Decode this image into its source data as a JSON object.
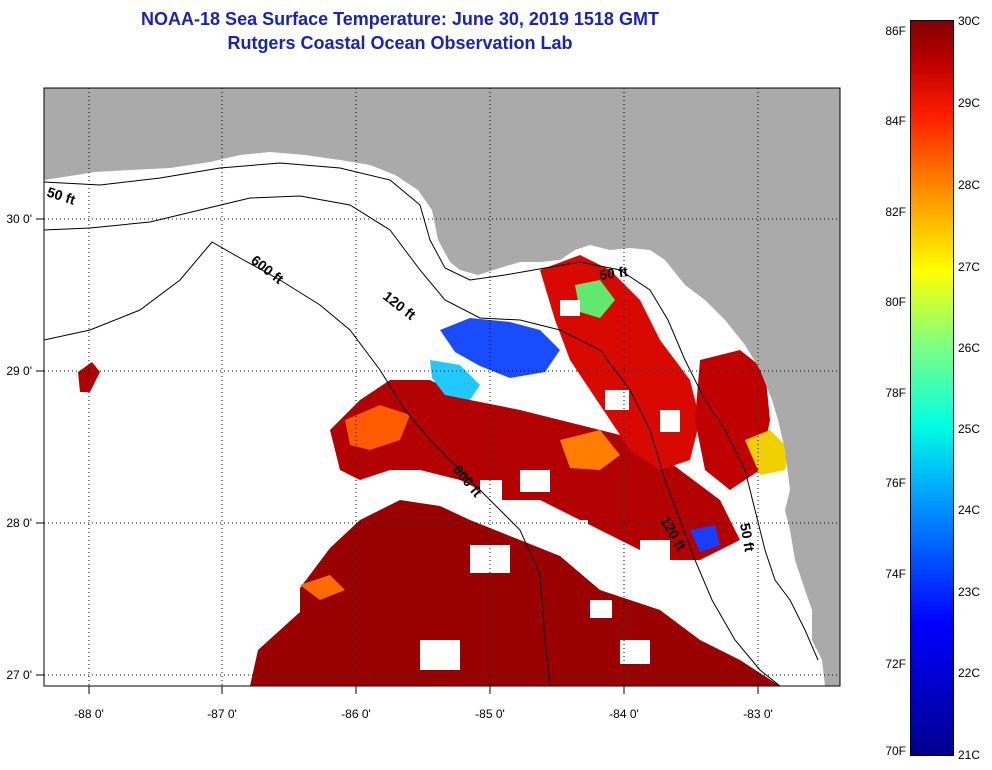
{
  "title_line1": "NOAA-18 Sea Surface Temperature:  June 30, 2019 1518 GMT",
  "title_line2": "Rutgers Coastal Ocean Observation Lab",
  "longitude_labels": [
    "-88 0'",
    "-87 0'",
    "-86 0'",
    "-85 0'",
    "-84 0'",
    "-83 0'"
  ],
  "latitude_labels": [
    "30 0'",
    "29 0'",
    "28 0'",
    "27 0'"
  ],
  "isobath_labels": [
    "50 ft",
    "600 ft",
    "120 ft",
    "50 ft",
    "600 ft",
    "120 ft",
    "50 ft"
  ],
  "colorbar": {
    "fahrenheit": [
      "86F",
      "84F",
      "82F",
      "80F",
      "78F",
      "76F",
      "74F",
      "72F",
      "70F"
    ],
    "celsius": [
      "30C",
      "29C",
      "28C",
      "27C",
      "26C",
      "25C",
      "24C",
      "23C",
      "22C",
      "21C"
    ]
  },
  "colors": {
    "land": "#aaaaaa",
    "cloud_or_missing": "#ffffff",
    "title_text": "#1a24b4",
    "scale_min": "#00008f",
    "scale_max": "#800000"
  }
}
